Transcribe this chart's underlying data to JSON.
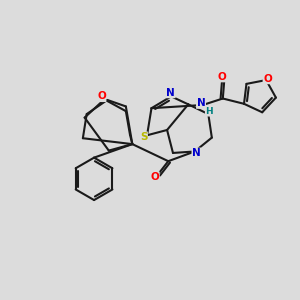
{
  "bg_color": "#dcdcdc",
  "bond_color": "#1a1a1a",
  "bond_width": 1.5,
  "atom_colors": {
    "O": "#ff0000",
    "N": "#0000cc",
    "S": "#b8b800",
    "H": "#008080",
    "C": "#1a1a1a"
  },
  "fig_size": [
    3.0,
    3.0
  ],
  "dpi": 100
}
